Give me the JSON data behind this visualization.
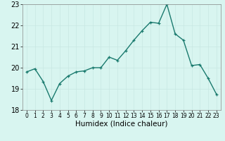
{
  "xlabel": "Humidex (Indice chaleur)",
  "x": [
    0,
    1,
    2,
    3,
    4,
    5,
    6,
    7,
    8,
    9,
    10,
    11,
    12,
    13,
    14,
    15,
    16,
    17,
    18,
    19,
    20,
    21,
    22,
    23
  ],
  "y": [
    19.8,
    19.95,
    19.35,
    18.45,
    19.25,
    19.6,
    19.8,
    19.85,
    20.0,
    20.0,
    20.5,
    20.35,
    20.8,
    21.3,
    21.75,
    22.15,
    22.1,
    23.0,
    21.6,
    21.3,
    20.1,
    20.15,
    19.5,
    18.75
  ],
  "line_color": "#1a7a6e",
  "bg_color": "#d8f5f0",
  "grid_color": "#c8e8e2",
  "ylim": [
    18,
    23
  ],
  "yticks": [
    18,
    19,
    20,
    21,
    22,
    23
  ],
  "xticks": [
    0,
    1,
    2,
    3,
    4,
    5,
    6,
    7,
    8,
    9,
    10,
    11,
    12,
    13,
    14,
    15,
    16,
    17,
    18,
    19,
    20,
    21,
    22,
    23
  ],
  "marker": "+",
  "marker_size": 3.5,
  "linewidth": 1.0,
  "ytick_fontsize": 7,
  "xtick_fontsize": 5.5,
  "xlabel_fontsize": 7.5
}
